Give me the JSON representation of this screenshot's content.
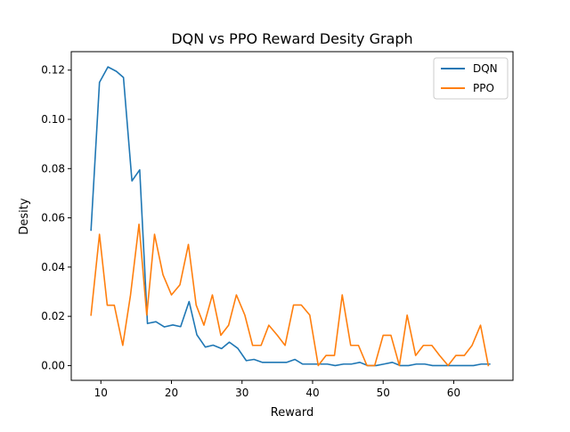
{
  "chart_data": {
    "type": "line",
    "title": "DQN vs PPO Reward Desity Graph",
    "xlabel": "Reward",
    "ylabel": "Desity",
    "xlim": [
      5.8,
      68.4
    ],
    "ylim": [
      -0.006,
      0.1275
    ],
    "xticks": [
      10,
      20,
      30,
      40,
      50,
      60
    ],
    "xtick_labels": [
      "10",
      "20",
      "30",
      "40",
      "50",
      "60"
    ],
    "yticks": [
      0.0,
      0.02,
      0.04,
      0.06,
      0.08,
      0.1,
      0.12
    ],
    "ytick_labels": [
      "0.00",
      "0.02",
      "0.04",
      "0.06",
      "0.08",
      "0.10",
      "0.12"
    ],
    "grid": false,
    "legend_position": "upper-right",
    "series": [
      {
        "name": "DQN",
        "color": "#1f77b4",
        "x": [
          8.6,
          9.8,
          11.0,
          12.2,
          13.2,
          14.4,
          15.5,
          16.6,
          17.8,
          19.0,
          20.2,
          21.3,
          22.5,
          23.6,
          24.8,
          25.9,
          27.1,
          28.2,
          29.4,
          30.6,
          31.7,
          32.9,
          34.0,
          35.2,
          36.3,
          37.5,
          38.6,
          39.8,
          40.9,
          42.1,
          43.2,
          44.4,
          45.5,
          46.7,
          47.8,
          49.0,
          50.1,
          51.3,
          52.4,
          53.6,
          54.7,
          55.9,
          57.0,
          58.2,
          59.3,
          60.5,
          61.6,
          62.8,
          63.9,
          65.1
        ],
        "values": [
          0.055,
          0.115,
          0.1213,
          0.1195,
          0.117,
          0.075,
          0.0795,
          0.0171,
          0.0178,
          0.0157,
          0.0165,
          0.0158,
          0.026,
          0.0125,
          0.0075,
          0.0083,
          0.0069,
          0.0095,
          0.007,
          0.002,
          0.0025,
          0.0013,
          0.0013,
          0.0013,
          0.0013,
          0.0025,
          0.0006,
          0.0006,
          0.0006,
          0.0006,
          0.0,
          0.0006,
          0.0006,
          0.0013,
          0.0,
          0.0,
          0.0006,
          0.0013,
          0.0,
          0.0,
          0.0006,
          0.0006,
          0.0,
          0.0,
          0.0,
          0.0,
          0.0,
          0.0,
          0.0006,
          0.0006
        ]
      },
      {
        "name": "PPO",
        "color": "#ff7f0e",
        "x": [
          8.6,
          9.8,
          10.9,
          11.9,
          13.1,
          14.2,
          15.4,
          16.5,
          17.6,
          18.8,
          20.0,
          21.2,
          22.4,
          23.5,
          24.6,
          25.8,
          27.0,
          28.1,
          29.2,
          30.4,
          31.5,
          32.7,
          33.8,
          35.0,
          36.1,
          37.3,
          38.4,
          39.6,
          40.8,
          41.9,
          43.1,
          44.2,
          45.4,
          46.5,
          47.7,
          48.8,
          50.0,
          51.1,
          52.3,
          53.4,
          54.6,
          55.7,
          56.9,
          58.0,
          59.2,
          60.3,
          61.5,
          62.6,
          63.8,
          64.9
        ],
        "values": [
          0.0205,
          0.0533,
          0.0245,
          0.0245,
          0.0082,
          0.0287,
          0.0574,
          0.0205,
          0.0533,
          0.0369,
          0.0287,
          0.0328,
          0.0492,
          0.0246,
          0.0164,
          0.0287,
          0.0123,
          0.0164,
          0.0287,
          0.0205,
          0.0082,
          0.0082,
          0.0164,
          0.0123,
          0.0082,
          0.0246,
          0.0246,
          0.0205,
          0.0,
          0.0041,
          0.0041,
          0.0287,
          0.0082,
          0.0082,
          0.0,
          0.0,
          0.0123,
          0.0123,
          0.0,
          0.0205,
          0.0041,
          0.0082,
          0.0082,
          0.0041,
          0.0,
          0.0041,
          0.0041,
          0.0082,
          0.0164,
          0.0
        ]
      }
    ]
  }
}
